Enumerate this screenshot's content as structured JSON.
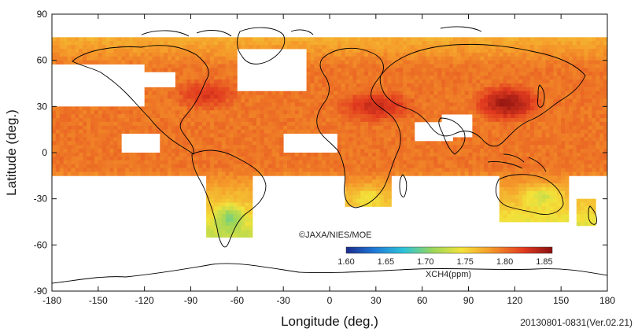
{
  "map": {
    "extent": {
      "lon_min": -180,
      "lon_max": 180,
      "lat_min": -90,
      "lat_max": 90
    },
    "x_ticks": [
      -180,
      -150,
      -120,
      -90,
      -60,
      -30,
      0,
      30,
      60,
      90,
      120,
      150,
      180
    ],
    "y_ticks": [
      90,
      60,
      30,
      0,
      -30,
      -60,
      -90
    ],
    "xlabel": "Longitude (deg.)",
    "ylabel": "Latitude (deg.)",
    "grid": false
  },
  "credit": "©JAXA/NIES/MOE",
  "timestamp": "20130801-0831(Ver.02.21)",
  "colorbar": {
    "title": "XCH4(ppm)",
    "min": 1.6,
    "max": 1.86,
    "ticks": [
      "1.60",
      "1.65",
      "1.70",
      "1.75",
      "1.80",
      "1.85"
    ],
    "stops": [
      "#1a2a8c",
      "#1f7ad8",
      "#2cc3d8",
      "#9ad65a",
      "#f3e23a",
      "#f59a2a",
      "#e23b1f",
      "#8a1010"
    ]
  },
  "field": {
    "unit": "ppm",
    "typical_ocean": 1.8,
    "northern_hot_spots": 1.85,
    "southern_low": 1.72
  },
  "colors": {
    "axis": "#111111",
    "coast": "#000000",
    "background": "#ffffff"
  }
}
